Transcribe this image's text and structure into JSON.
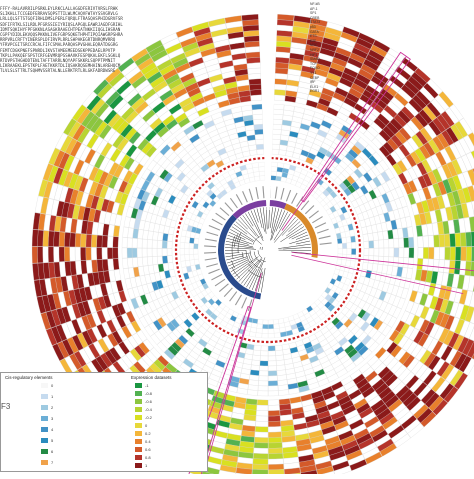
{
  "sequences": [
    "FFFY-RALAVRRILPSRKLEYLRKCLALLAGGDFERIVTVRSLFRHK",
    "SLIKHLLTCCGEDFERRAVSQPSTTILWLMCAQVFWTAYSSVGRVLG",
    "LRLLQLSFTSTGQFIRHLDMSLPERLFQRQLFTRASQASPHIDGRVFSR",
    "SDFIFRTKLSILRDLPFGRSSIEIYRIQSLAPGQLEAWRJAGDFGRIHL",
    "IDMTSQKIHYFPFGKKNLASAGKRAAECHTPEATNKKIIQGLIHSRAN",
    "CGPFYDIDLEKVQQSPKKNLIVEFGRPSQKETHPHTIPQIAWGRPSHRA",
    "RRPVRLCRFTYINERSPLDFIRVPLRRLSHPAKEGRTDNRQMVRRQ",
    "YFRVPCGITSRCCRCALFIFCSMALPARQASPVGHALEQRATDGGRG",
    "FEMTCDGKPNEFSPNRDLIKVSTAMEEMEEDSEKPPEDAELRPVTP",
    "TKPLLPAKQEFSPSTCRFGEVMRQPSSHAVKFESPQKALEKFLSGKLQ",
    "RTDVPSTHGHDDTENLTAFFTARRLNQYAPFSKKRLSQPPTPMNIT",
    "LIKRAAEKLEPSTKPLFAETKKRTDLIQSAKRQSEMHAINLAREHQCM",
    "TLVLSLSTTRLTSQHMVSSRTALNLLERKTRTLRLGKFADRDWSRE"
  ],
  "track_labels": [
    "NF-kB",
    "AP-1",
    "SP1",
    "CREB",
    "STAT3",
    "p53",
    "GATA",
    "ETS",
    "E2F",
    "MYC",
    "NRF2",
    "HIF1",
    "SMAD",
    "TCF",
    "FOXO",
    "YY1",
    "CEBP",
    "IRF",
    "ELK1",
    "EGR1"
  ],
  "legend": {
    "cis_title": "Cis-regulatory elements",
    "cis_values": [
      "0",
      "1",
      "2",
      "3",
      "4",
      "5",
      "6",
      "7"
    ],
    "expr_title": "Expression datasets",
    "expr_values": [
      "-1",
      "-0.8",
      "-0.6",
      "-0.4",
      "-0.2",
      "0",
      "0.2",
      "0.4",
      "0.6",
      "0.8",
      "1"
    ],
    "panel_label": "F3"
  },
  "colors": {
    "cis": [
      "#f7f7f7",
      "#c6dbef",
      "#9ecae1",
      "#6baed6",
      "#4292c6",
      "#2b8cbe",
      "#238b45",
      "#f0a24a"
    ],
    "expression": [
      "#1a9641",
      "#52b151",
      "#8cc63f",
      "#b8d432",
      "#d9e021",
      "#e7d83a",
      "#f4b63a",
      "#e8802c",
      "#d45a2a",
      "#b5342a",
      "#8b1a1a"
    ],
    "highlight": "#cc3399",
    "tree_blue": "#2a4b8d",
    "tree_orange": "#d98a2b",
    "tree_purple": "#7b3fa0",
    "red_dot": "#cc2222"
  }
}
